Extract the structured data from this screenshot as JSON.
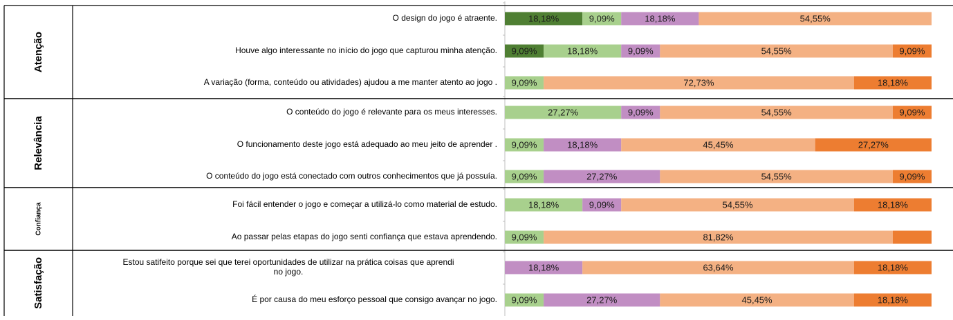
{
  "chart_data": {
    "type": "bar",
    "stacked": true,
    "orientation": "horizontal",
    "normalized": "percent",
    "categories_palette": [
      {
        "key": "c1",
        "color": "#4f7f33"
      },
      {
        "key": "c2",
        "color": "#a8d08d"
      },
      {
        "key": "c3",
        "color": "#c18ec3"
      },
      {
        "key": "c4",
        "color": "#f4b183"
      },
      {
        "key": "c5",
        "color": "#ed7d31"
      }
    ],
    "groups": [
      {
        "name": "Atenção",
        "items": [
          {
            "label": "O design do jogo é atraente.",
            "segments": [
              {
                "cat": "c1",
                "value": 18.18,
                "label": "18,18%"
              },
              {
                "cat": "c2",
                "value": 9.09,
                "label": "9,09%"
              },
              {
                "cat": "c3",
                "value": 18.18,
                "label": "18,18%"
              },
              {
                "cat": "c4",
                "value": 54.55,
                "label": "54,55%"
              }
            ]
          },
          {
            "label": "Houve algo interessante no início do jogo que capturou minha atenção.",
            "segments": [
              {
                "cat": "c1",
                "value": 9.09,
                "label": "9,09%"
              },
              {
                "cat": "c2",
                "value": 18.18,
                "label": "18,18%"
              },
              {
                "cat": "c3",
                "value": 9.09,
                "label": "9,09%"
              },
              {
                "cat": "c4",
                "value": 54.55,
                "label": "54,55%"
              },
              {
                "cat": "c5",
                "value": 9.09,
                "label": "9,09%"
              }
            ]
          },
          {
            "label": "A variação (forma, conteúdo ou atividades) ajudou a me manter atento ao jogo .",
            "segments": [
              {
                "cat": "c2",
                "value": 9.09,
                "label": "9,09%"
              },
              {
                "cat": "c4",
                "value": 72.73,
                "label": "72,73%"
              },
              {
                "cat": "c5",
                "value": 18.18,
                "label": "18,18%"
              }
            ]
          }
        ]
      },
      {
        "name": "Relevância",
        "items": [
          {
            "label": "O conteúdo do jogo é relevante para os meus interesses.",
            "segments": [
              {
                "cat": "c2",
                "value": 27.27,
                "label": "27,27%"
              },
              {
                "cat": "c3",
                "value": 9.09,
                "label": "9,09%"
              },
              {
                "cat": "c4",
                "value": 54.55,
                "label": "54,55%"
              },
              {
                "cat": "c5",
                "value": 9.09,
                "label": "9,09%"
              }
            ]
          },
          {
            "label": "O funcionamento deste jogo está adequado ao meu jeito de aprender .",
            "segments": [
              {
                "cat": "c2",
                "value": 9.09,
                "label": "9,09%"
              },
              {
                "cat": "c3",
                "value": 18.18,
                "label": "18,18%"
              },
              {
                "cat": "c4",
                "value": 45.45,
                "label": "45,45%"
              },
              {
                "cat": "c5",
                "value": 27.27,
                "label": "27,27%"
              }
            ]
          },
          {
            "label": "O conteúdo do jogo está conectado com outros conhecimentos que já possuía.",
            "segments": [
              {
                "cat": "c2",
                "value": 9.09,
                "label": "9,09%"
              },
              {
                "cat": "c3",
                "value": 27.27,
                "label": "27,27%"
              },
              {
                "cat": "c4",
                "value": 54.55,
                "label": "54,55%"
              },
              {
                "cat": "c5",
                "value": 9.09,
                "label": "9,09%"
              }
            ]
          }
        ]
      },
      {
        "name": "Confiança",
        "items": [
          {
            "label": "Foi fácil entender o jogo e começar a utilizá-lo como material de estudo.",
            "segments": [
              {
                "cat": "c2",
                "value": 18.18,
                "label": "18,18%"
              },
              {
                "cat": "c3",
                "value": 9.09,
                "label": "9,09%"
              },
              {
                "cat": "c4",
                "value": 54.55,
                "label": "54,55%"
              },
              {
                "cat": "c5",
                "value": 18.18,
                "label": "18,18%"
              }
            ]
          },
          {
            "label": "Ao passar pelas etapas do jogo senti confiança que estava aprendendo.",
            "segments": [
              {
                "cat": "c2",
                "value": 9.09,
                "label": "9,09%"
              },
              {
                "cat": "c4",
                "value": 81.82,
                "label": "81,82%"
              },
              {
                "cat": "c5",
                "value": 9.09,
                "label": ""
              }
            ]
          }
        ]
      },
      {
        "name": "Satisfação",
        "items": [
          {
            "label": "Estou satifeito porque sei que terei oportunidades de utilizar na prática coisas que aprendi no jogo.",
            "label_lines": [
              "Estou satifeito porque sei que terei oportunidades de utilizar na prática coisas que aprendi",
              "no jogo."
            ],
            "segments": [
              {
                "cat": "c3",
                "value": 18.18,
                "label": "18,18%"
              },
              {
                "cat": "c4",
                "value": 63.64,
                "label": "63,64%"
              },
              {
                "cat": "c5",
                "value": 18.18,
                "label": "18,18%"
              }
            ]
          },
          {
            "label": "É por causa do meu esforço pessoal que consigo avançar no jogo.",
            "segments": [
              {
                "cat": "c2",
                "value": 9.09,
                "label": "9,09%"
              },
              {
                "cat": "c3",
                "value": 27.27,
                "label": "27,27%"
              },
              {
                "cat": "c4",
                "value": 45.45,
                "label": "45,45%"
              },
              {
                "cat": "c5",
                "value": 18.18,
                "label": "18,18%"
              }
            ]
          }
        ]
      }
    ]
  }
}
